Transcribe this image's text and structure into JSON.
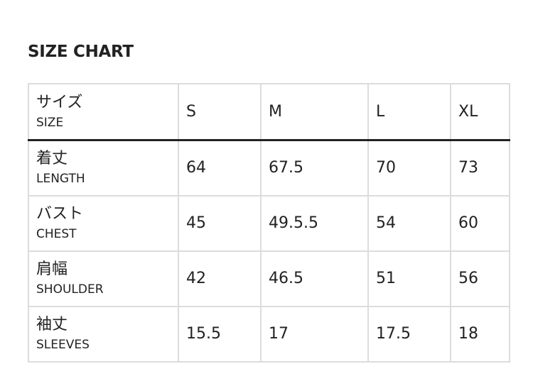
{
  "title": "SIZE CHART",
  "header": {
    "jp": "サイズ",
    "en": "SIZE",
    "sizes": [
      "S",
      "M",
      "L",
      "XL"
    ]
  },
  "rows": [
    {
      "jp": "着丈",
      "en": "LENGTH",
      "values": [
        "64",
        "67.5",
        "70",
        "73"
      ]
    },
    {
      "jp": "バスト",
      "en": "CHEST",
      "values": [
        "45",
        "49.5.5",
        "54",
        "60"
      ]
    },
    {
      "jp": "肩幅",
      "en": "SHOULDER",
      "values": [
        "42",
        "46.5",
        "51",
        "56"
      ]
    },
    {
      "jp": "袖丈",
      "en": "SLEEVES",
      "values": [
        "15.5",
        "17",
        "17.5",
        "18"
      ]
    }
  ]
}
